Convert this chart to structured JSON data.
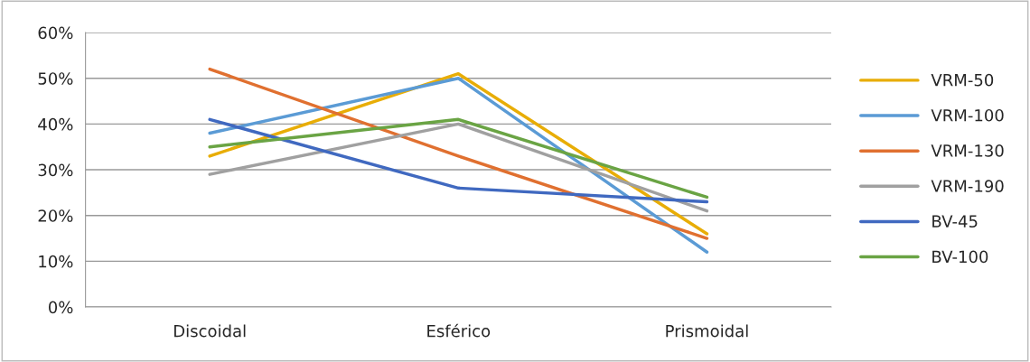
{
  "chart_data": {
    "type": "line",
    "categories": [
      "Discoidal",
      "Esférico",
      "Prismoidal"
    ],
    "series": [
      {
        "name": "VRM-50",
        "color": "#e8ad06",
        "values": [
          33,
          51,
          16
        ]
      },
      {
        "name": "VRM-100",
        "color": "#5b9bd5",
        "values": [
          38,
          50,
          12
        ]
      },
      {
        "name": "VRM-130",
        "color": "#e07030",
        "values": [
          52,
          33,
          15
        ]
      },
      {
        "name": "VRM-190",
        "color": "#a0a0a0",
        "values": [
          29,
          40,
          21
        ]
      },
      {
        "name": "BV-45",
        "color": "#4069c0",
        "values": [
          41,
          26,
          23
        ]
      },
      {
        "name": "BV-100",
        "color": "#6aa444",
        "values": [
          35,
          41,
          24
        ]
      }
    ],
    "ylim": [
      0,
      60
    ],
    "yticks": [
      {
        "value": 0,
        "label": "0%"
      },
      {
        "value": 10,
        "label": "10%"
      },
      {
        "value": 20,
        "label": "20%"
      },
      {
        "value": 30,
        "label": "30%"
      },
      {
        "value": 40,
        "label": "40%"
      },
      {
        "value": 50,
        "label": "50%"
      },
      {
        "value": 60,
        "label": "60%"
      }
    ],
    "grid": "y",
    "legend": "right",
    "marker": "none",
    "line_style": "solid"
  }
}
